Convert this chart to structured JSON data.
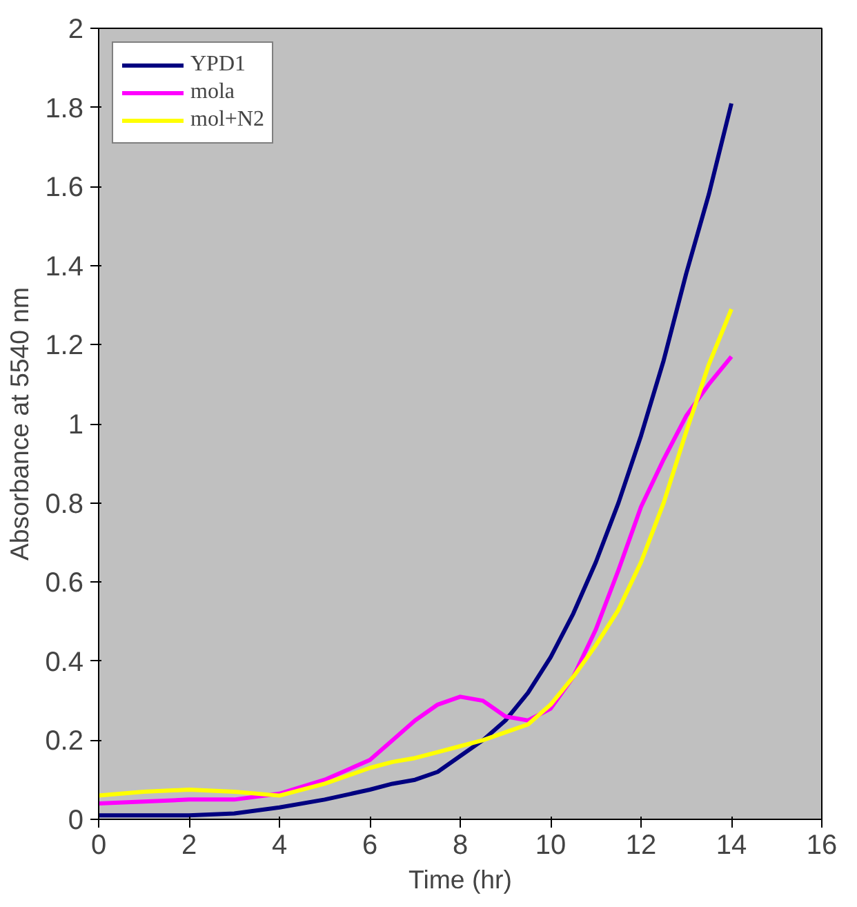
{
  "chart_data": {
    "type": "line",
    "xlabel": "Time (hr)",
    "ylabel": "Absorbance at 5540 nm",
    "xlim": [
      0,
      16
    ],
    "xticks": [
      0,
      2,
      4,
      6,
      8,
      10,
      12,
      14,
      16
    ],
    "ylim": [
      0,
      2
    ],
    "yticks": [
      0,
      0.2,
      0.4,
      0.6,
      0.8,
      1,
      1.2,
      1.4,
      1.6,
      1.8,
      2
    ],
    "grid": false,
    "legend": "top left",
    "marker": "none",
    "line_style": "solid",
    "series": [
      {
        "name": "YPD1",
        "color": "#000080",
        "x": [
          0,
          2,
          3,
          4,
          5,
          6,
          6.5,
          7,
          7.5,
          8,
          8.5,
          9,
          9.5,
          10,
          10.5,
          11,
          11.5,
          12,
          12.5,
          13,
          13.5,
          14
        ],
        "values": [
          0.01,
          0.01,
          0.015,
          0.03,
          0.05,
          0.075,
          0.09,
          0.1,
          0.12,
          0.16,
          0.2,
          0.25,
          0.32,
          0.41,
          0.52,
          0.65,
          0.8,
          0.97,
          1.16,
          1.38,
          1.58,
          1.81
        ]
      },
      {
        "name": "mola",
        "color": "#ff00ff",
        "x": [
          0,
          1,
          2,
          3,
          4,
          5,
          6,
          6.5,
          7,
          7.5,
          8,
          8.5,
          9,
          9.5,
          10,
          10.5,
          11,
          11.5,
          12,
          12.5,
          13,
          13.5,
          14
        ],
        "values": [
          0.04,
          0.045,
          0.05,
          0.05,
          0.065,
          0.1,
          0.15,
          0.2,
          0.25,
          0.29,
          0.31,
          0.3,
          0.26,
          0.25,
          0.28,
          0.36,
          0.48,
          0.63,
          0.79,
          0.91,
          1.02,
          1.1,
          1.17
        ]
      },
      {
        "name": "mol+N2",
        "color": "#ffff00",
        "x": [
          0,
          1,
          2,
          3,
          4,
          5,
          6,
          6.5,
          7,
          7.5,
          8,
          8.5,
          9,
          9.5,
          10,
          10.5,
          11,
          11.5,
          12,
          12.5,
          13,
          13.5,
          14
        ],
        "values": [
          0.06,
          0.07,
          0.075,
          0.07,
          0.06,
          0.09,
          0.13,
          0.145,
          0.155,
          0.17,
          0.185,
          0.2,
          0.22,
          0.24,
          0.29,
          0.36,
          0.44,
          0.53,
          0.65,
          0.8,
          0.98,
          1.15,
          1.29
        ]
      }
    ]
  }
}
